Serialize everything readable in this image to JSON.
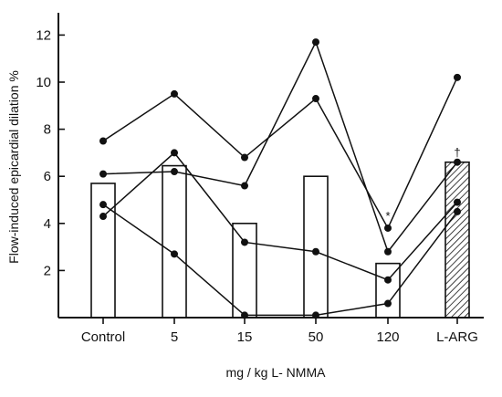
{
  "chart_data": {
    "type": "bar",
    "categories": [
      "Control",
      "5",
      "15",
      "50",
      "120",
      "L-ARG"
    ],
    "bar_values": [
      5.7,
      6.45,
      4.0,
      6.0,
      2.3,
      6.6
    ],
    "bar_styles": [
      "open",
      "open",
      "open",
      "open",
      "open",
      "hatched"
    ],
    "series": [
      {
        "values": [
          7.5,
          9.5,
          6.8,
          9.3,
          3.8,
          10.2
        ]
      },
      {
        "values": [
          6.1,
          6.2,
          5.6,
          11.7,
          2.8,
          6.6
        ]
      },
      {
        "values": [
          4.3,
          7.0,
          3.2,
          2.8,
          1.6,
          4.9
        ]
      },
      {
        "values": [
          4.8,
          2.7,
          0.1,
          0.1,
          0.6,
          4.5
        ]
      }
    ],
    "y_ticks": [
      2,
      4,
      6,
      8,
      10,
      12
    ],
    "ylim": [
      0,
      13.5
    ],
    "ylabel": "Flow-induced epicardial dilation %",
    "xlabel": "mg / kg L- NMMA",
    "annotations": [
      {
        "category": "120",
        "text": "*",
        "value": 4.3
      },
      {
        "category": "L-ARG",
        "text": "†",
        "value": 7.0
      }
    ],
    "grid": false,
    "legend": "none",
    "colors": {
      "line": "#111111",
      "bar_fill": "#ffffff",
      "hatch": "#111111"
    }
  }
}
